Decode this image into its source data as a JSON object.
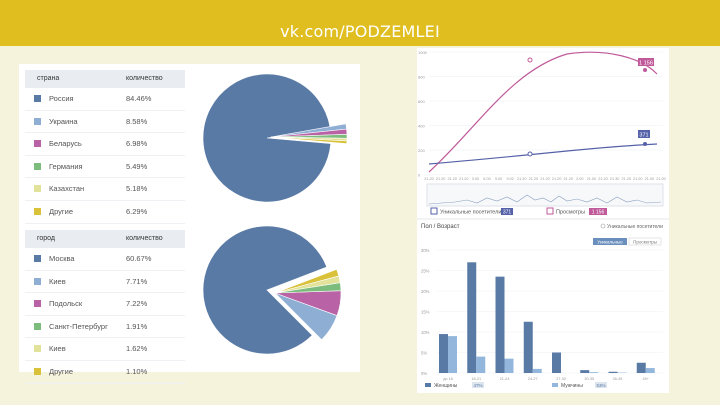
{
  "header": {
    "title": "vk.com/PODZEMLEI"
  },
  "countries": {
    "col1": "страна",
    "col2": "количество",
    "rows": [
      {
        "label": "Россия",
        "value": "84.46%",
        "color": "#5a7aa6"
      },
      {
        "label": "Украина",
        "value": "8.58%",
        "color": "#8eaed4"
      },
      {
        "label": "Беларусь",
        "value": "6.98%",
        "color": "#b962a6"
      },
      {
        "label": "Германия",
        "value": "5.49%",
        "color": "#7cbc7c"
      },
      {
        "label": "Казахстан",
        "value": "5.18%",
        "color": "#e3e29a"
      },
      {
        "label": "Другие",
        "value": "6.29%",
        "color": "#d9c13a"
      }
    ]
  },
  "cities": {
    "col1": "город",
    "col2": "количество",
    "rows": [
      {
        "label": "Москва",
        "value": "60.67%",
        "color": "#5a7aa6"
      },
      {
        "label": "Киев",
        "value": "7.71%",
        "color": "#8eaed4"
      },
      {
        "label": "Подольск",
        "value": "7.22%",
        "color": "#b962a6"
      },
      {
        "label": "Санкт-Петербург",
        "value": "1.91%",
        "color": "#7cbc7c"
      },
      {
        "label": "Киев",
        "value": "1.62%",
        "color": "#e3e29a"
      },
      {
        "label": "Другие",
        "value": "1.10%",
        "color": "#d9c13a"
      }
    ]
  },
  "line_chart": {
    "y_ticks": [
      "1000",
      "800",
      "600",
      "400",
      "200",
      "0"
    ],
    "x_ticks": [
      "21.20",
      "21.20",
      "21.20",
      "21.20",
      "3.00",
      "6.00",
      "9.00",
      "9.02",
      "21.20",
      "21.20",
      "21.20",
      "21.20",
      "21.20",
      "2.00",
      "21.00",
      "21.20",
      "21.30",
      "21.20",
      "21.00",
      "21.00",
      "21.00"
    ],
    "series_top_label": "1 156",
    "series_bottom_label": "371",
    "legend_1": "Уникальные посетители",
    "legend_2": "Просмотры",
    "badge_1": "371",
    "badge_2": "1 156"
  },
  "bar_chart": {
    "title": "Пол / Возраст",
    "dropdown": "Уникальные посетители",
    "pill_left": "Уникальные",
    "pill_right": "Просмотры",
    "y_ticks": [
      "30%",
      "25%",
      "20%",
      "15%",
      "10%",
      "5%",
      "0%"
    ],
    "legend_1": "Женщины",
    "legend_1_badge": "47%",
    "legend_2": "Мужчины",
    "legend_2_badge": "53%"
  },
  "chart_data": {
    "type": "bar",
    "categories": [
      "до 18",
      "18-21",
      "21-24",
      "24-27",
      "27-30",
      "30-35",
      "35-45",
      "45+"
    ],
    "series": [
      {
        "name": "Женщины",
        "values": [
          9.5,
          27,
          23.5,
          12.5,
          5,
          0.7,
          0.3,
          2.5
        ]
      },
      {
        "name": "Мужчины",
        "values": [
          9,
          4,
          3.5,
          1,
          0,
          0.2,
          0.1,
          1.2
        ]
      }
    ],
    "ylim": [
      0,
      30
    ]
  }
}
